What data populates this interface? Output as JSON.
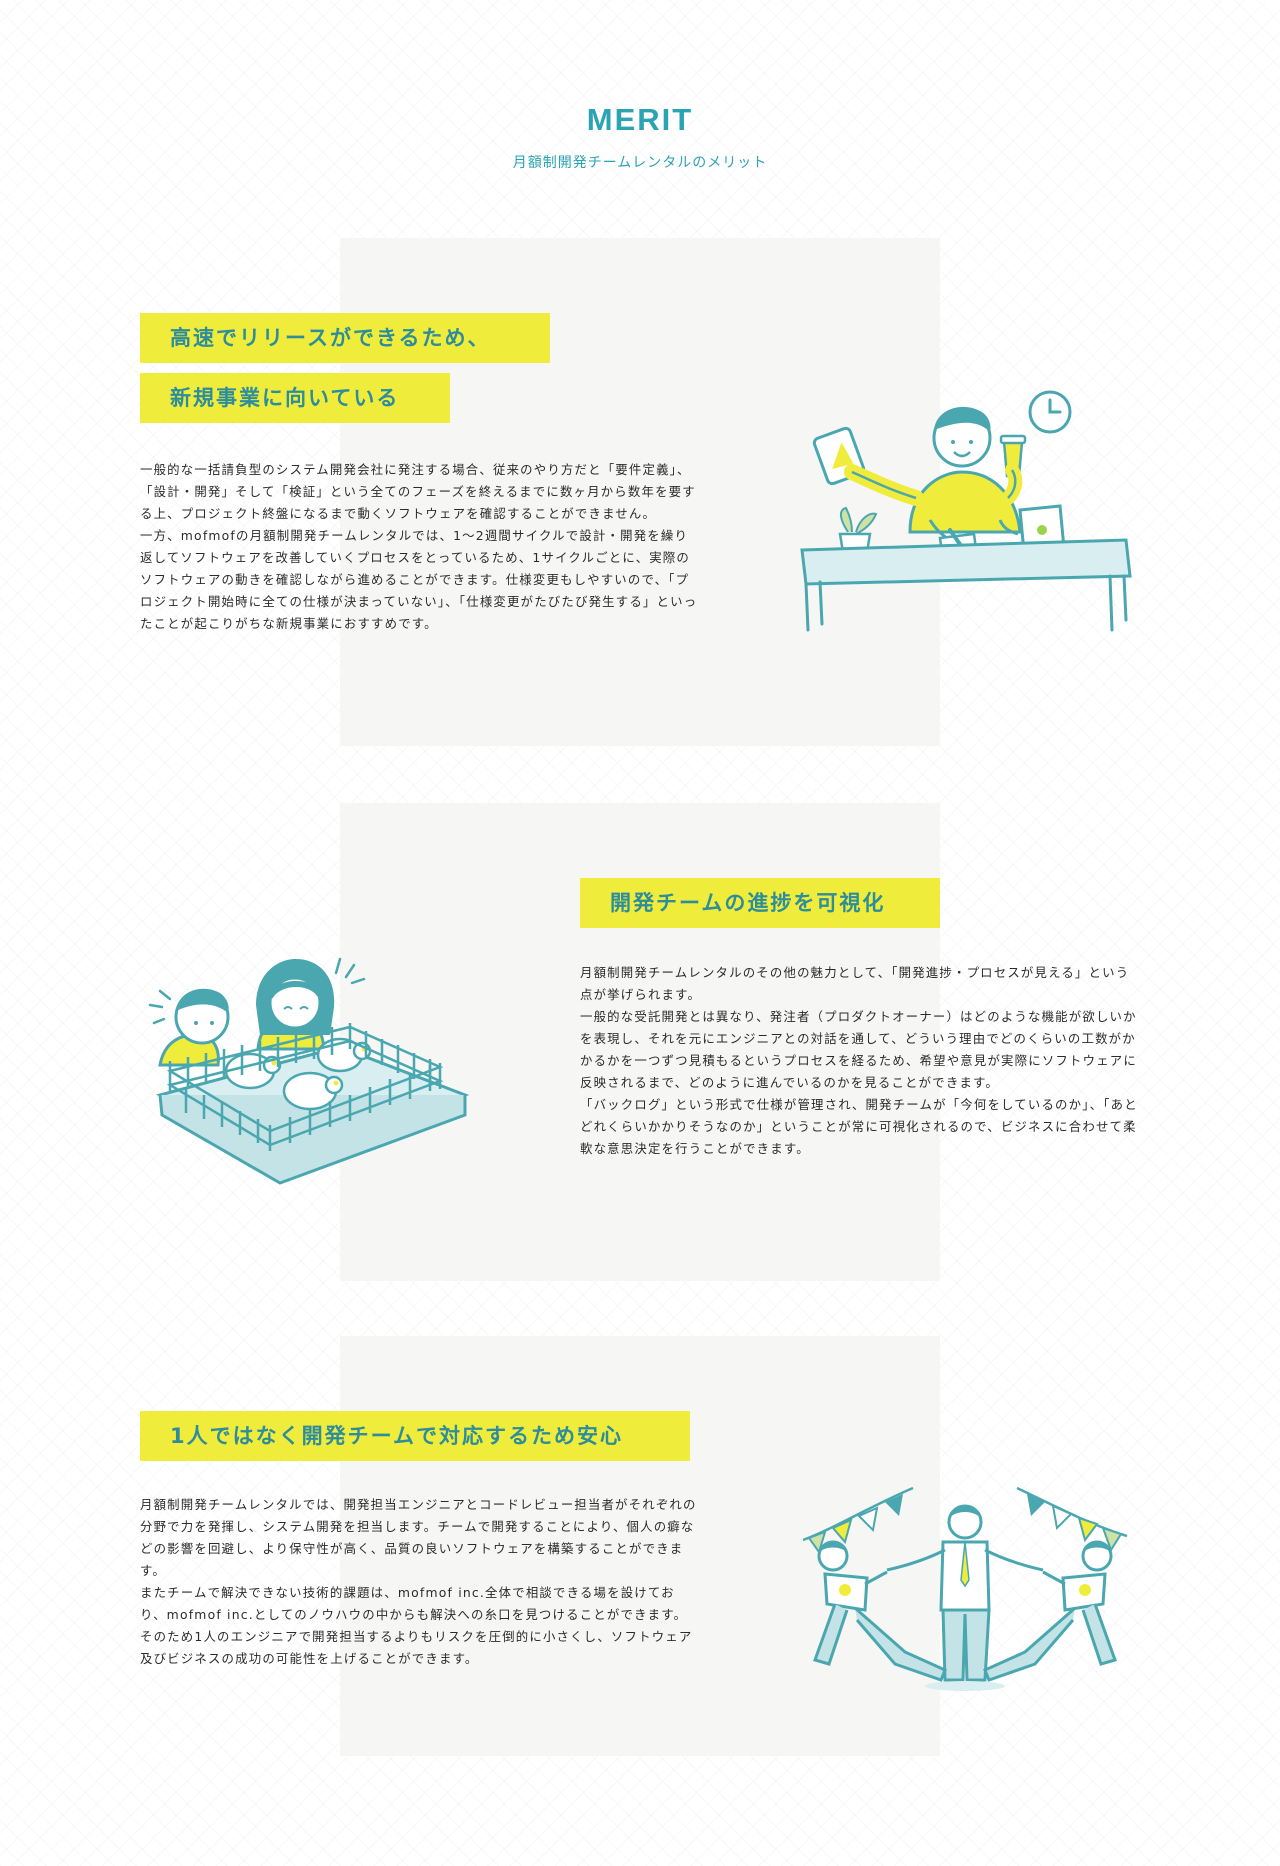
{
  "header": {
    "title": "MERIT",
    "subtitle": "月額制開発チームレンタルのメリット"
  },
  "merits": [
    {
      "title_lines": [
        "高速でリリースができるため、",
        "新規事業に向いている"
      ],
      "paragraphs": [
        "一般的な一括請負型のシステム開発会社に発注する場合、従来のやり方だと「要件定義」、「設計・開発」そして「検証」という全てのフェーズを終えるまでに数ヶ月から数年を要する上、プロジェクト終盤になるまで動くソフトウェアを確認することができません。",
        "一方、mofmofの月額制開発チームレンタルでは、1〜2週間サイクルで設計・開発を繰り返してソフトウェアを改善していくプロセスをとっているため、1サイクルごとに、実際のソフトウェアの動きを確認しながら進めることができます。仕様変更もしやすいので、「プロジェクト開始時に全ての仕様が決まっていない」、「仕様変更がたびたび発生する」といったことが起こりがちな新規事業におすすめです。"
      ],
      "illustration": "developer-multitasking-illustration"
    },
    {
      "title_lines": [
        "開発チームの進捗を可視化"
      ],
      "paragraphs": [
        "月額制開発チームレンタルのその他の魅力として、「開発進捗・プロセスが見える」という点が挙げられます。",
        "一般的な受託開発とは異なり、発注者（プロダクトオーナー）はどのような機能が欲しいかを表現し、それを元にエンジニアとの対話を通して、どういう理由でどのくらいの工数がかかるかを一つずつ見積もるというプロセスを経るため、希望や意見が実際にソフトウェアに反映されるまで、どのように進んでいるのかを見ることができます。",
        "「バックログ」という形式で仕様が管理され、開発チームが「今何をしているのか」、「あとどれくらいかかりそうなのか」ということが常に可視化されるので、ビジネスに合わせて柔軟な意思決定を行うことができます。"
      ],
      "illustration": "sheep-pen-illustration"
    },
    {
      "title_lines": [
        "1人ではなく開発チームで対応するため安心"
      ],
      "paragraphs": [
        "月額制開発チームレンタルでは、開発担当エンジニアとコードレビュー担当者がそれぞれの分野で力を発揮し、システム開発を担当します。チームで開発することにより、個人の癖などの影響を回避し、より保守性が高く、品質の良いソフトウェアを構築することができます。",
        "またチームで解決できない技術的課題は、mofmof inc.全体で相談できる場を設けており、mofmof inc.としてのノウハウの中からも解決への糸口を見つけることができます。そのため1人のエンジニアで開発担当するよりもリスクを圧倒的に小さくし、ソフトウェア及びビジネスの成功の可能性を上げることができます。"
      ],
      "illustration": "team-celebration-illustration"
    }
  ],
  "colors": {
    "accent": "#2aa3b3",
    "highlight": "#f0ec3c",
    "panel": "#f6f6f4"
  }
}
